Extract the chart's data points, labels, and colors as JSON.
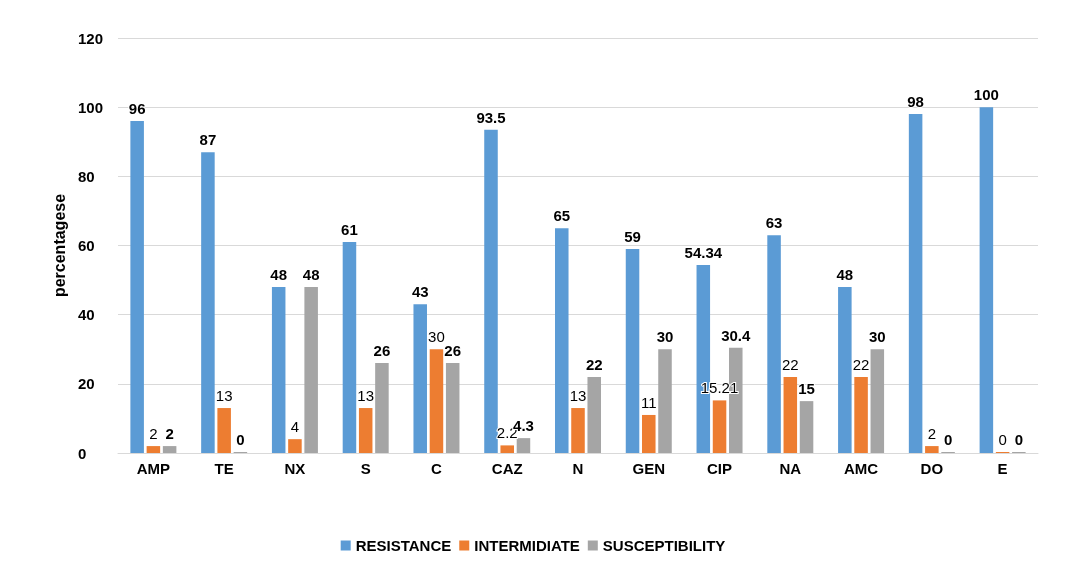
{
  "chart_data": {
    "type": "bar",
    "ylabel": "percentagese",
    "categories": [
      "AMP",
      "TE",
      "NX",
      "S",
      "C",
      "CAZ",
      "N",
      "GEN",
      "CIP",
      "NA",
      "AMC",
      "DO",
      "E"
    ],
    "series": [
      {
        "name": "RESISTANCE",
        "color": "#5b9bd5",
        "values": [
          96,
          87,
          48,
          61,
          43,
          93.5,
          65,
          59,
          54.34,
          63,
          48,
          98,
          100
        ]
      },
      {
        "name": "INTERMIDIATE",
        "color": "#ed7d31",
        "values": [
          2,
          13,
          4,
          13,
          30,
          2.2,
          13,
          11,
          15.21,
          22,
          22,
          2,
          0
        ]
      },
      {
        "name": "SUSCEPTIBILITY",
        "color": "#a5a5a5",
        "values": [
          2,
          0,
          48,
          26,
          26,
          4.3,
          22,
          30,
          30.4,
          15,
          30,
          0,
          0
        ]
      }
    ],
    "ylim": [
      0,
      120
    ],
    "yticks": [
      0,
      20,
      40,
      60,
      80,
      100,
      120
    ],
    "grid": "y",
    "legend": "bottom",
    "data_labels": true
  }
}
